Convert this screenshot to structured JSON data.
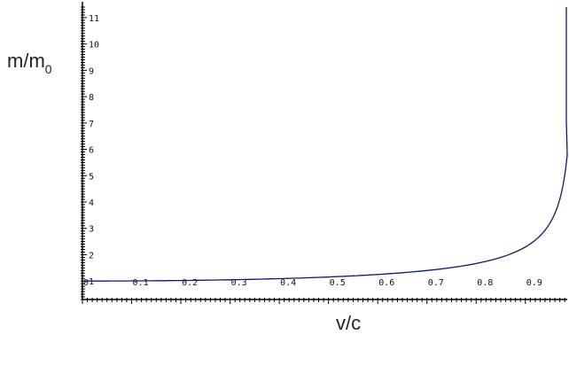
{
  "chart_data": {
    "type": "line",
    "xlabel": "v/c",
    "ylabel_main": "m/m",
    "ylabel_sub": "0",
    "xlim": [
      0,
      0.985
    ],
    "ylim": [
      0.3,
      11.4
    ],
    "x_ticks": [
      "0",
      "0.1",
      "0.2",
      "0.3",
      "0.4",
      "0.5",
      "0.6",
      "0.7",
      "0.8",
      "0.9"
    ],
    "y_ticks": [
      "1",
      "2",
      "3",
      "4",
      "5",
      "6",
      "7",
      "8",
      "9",
      "10",
      "11"
    ],
    "grid": false,
    "colors": {
      "curve": "#0d1b6b",
      "axis": "#000000"
    },
    "series": [
      {
        "x": [
          0.0,
          0.1,
          0.2,
          0.3,
          0.4,
          0.5,
          0.6,
          0.7,
          0.8,
          0.85,
          0.9,
          0.93,
          0.95,
          0.96,
          0.97,
          0.975,
          0.98,
          0.985
        ],
        "y": [
          1.0,
          1.005,
          1.021,
          1.048,
          1.091,
          1.155,
          1.25,
          1.4,
          1.667,
          1.898,
          2.294,
          2.72,
          3.203,
          3.571,
          4.113,
          4.5,
          5.025,
          5.795
        ]
      }
    ]
  }
}
